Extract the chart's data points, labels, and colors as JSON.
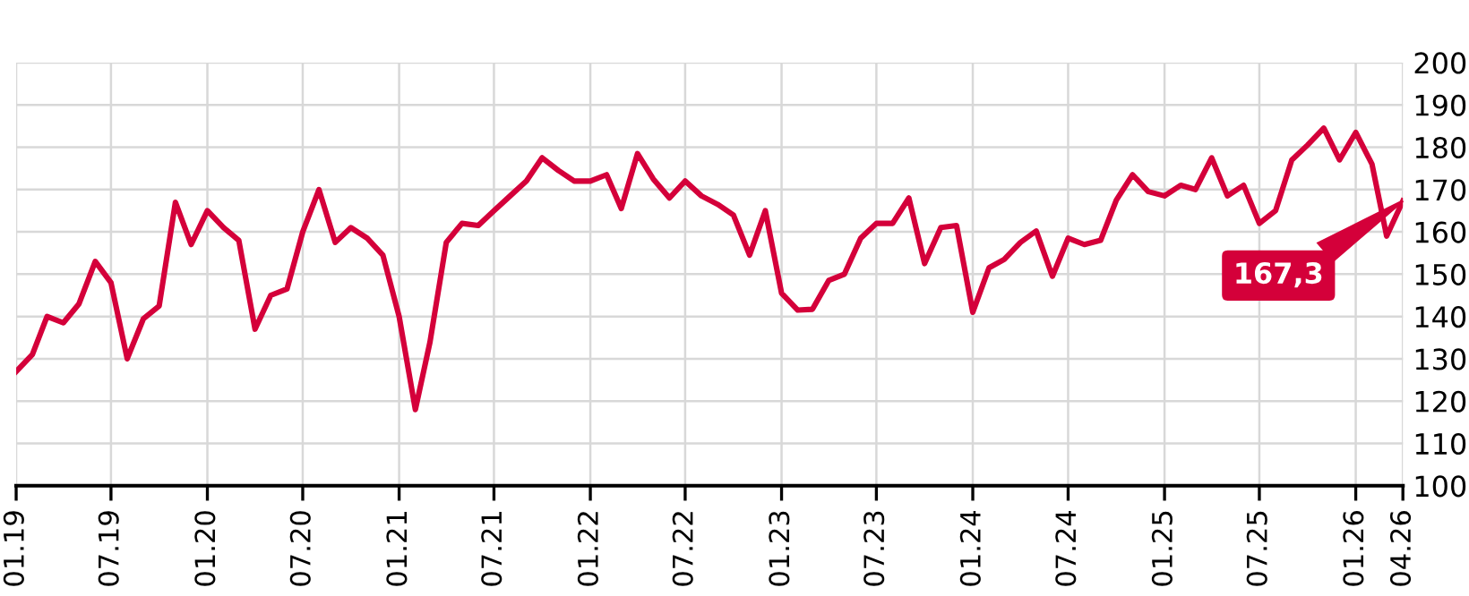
{
  "chart_data": {
    "type": "line",
    "x": [
      "2019-01",
      "2019-02",
      "2019-03",
      "2019-04",
      "2019-05",
      "2019-06",
      "2019-07",
      "2019-08",
      "2019-09",
      "2019-10",
      "2019-11",
      "2019-12",
      "2020-01",
      "2020-02",
      "2020-03",
      "2020-04",
      "2020-05",
      "2020-06",
      "2020-07",
      "2020-08",
      "2020-09",
      "2020-10",
      "2020-11",
      "2020-12",
      "2021-01",
      "2021-02",
      "2021-03",
      "2021-04",
      "2021-05",
      "2021-06",
      "2021-07",
      "2021-08",
      "2021-09",
      "2021-10",
      "2021-11",
      "2021-12",
      "2022-01",
      "2022-02",
      "2022-03",
      "2022-04",
      "2022-05",
      "2022-06",
      "2022-07",
      "2022-08",
      "2022-09",
      "2022-10",
      "2022-11",
      "2022-12",
      "2023-01",
      "2023-02",
      "2023-03",
      "2023-04",
      "2023-05",
      "2023-06",
      "2023-07",
      "2023-08",
      "2023-09",
      "2023-10",
      "2023-11",
      "2023-12",
      "2024-01",
      "2024-02",
      "2024-03",
      "2024-04",
      "2024-05",
      "2024-06",
      "2024-07",
      "2024-08",
      "2024-09",
      "2024-10",
      "2024-11",
      "2024-12",
      "2025-01",
      "2025-02",
      "2025-03",
      "2025-04",
      "2025-05",
      "2025-06",
      "2025-07",
      "2025-08",
      "2025-09",
      "2025-10",
      "2025-11",
      "2025-12",
      "2026-01",
      "2026-02",
      "2026-03",
      "2026-04"
    ],
    "series": [
      {
        "color": "#d4003a",
        "values": [
          127,
          131,
          140,
          138.5,
          143,
          153,
          148,
          130,
          139.5,
          142.5,
          167,
          157,
          165,
          161,
          158,
          137,
          145,
          146.5,
          160,
          170,
          157.5,
          161,
          158.5,
          154.5,
          140,
          118,
          134,
          157.5,
          162,
          161.5,
          165,
          168.5,
          172,
          177.5,
          174.5,
          172,
          172,
          173.5,
          165.5,
          178.5,
          172.5,
          168,
          172,
          168.5,
          166.5,
          164,
          154.5,
          165,
          145.5,
          141.5,
          141.7,
          148.5,
          150,
          158.5,
          162,
          162,
          168,
          152.5,
          161,
          161.5,
          141,
          151.5,
          153.5,
          157.5,
          160.2,
          149.5,
          158.5,
          157,
          158,
          167.5,
          173.5,
          169.5,
          168.5,
          171,
          170,
          177.5,
          168.5,
          171,
          162,
          165,
          177,
          180.5,
          184.5,
          177,
          183.5,
          176,
          159,
          167.3
        ]
      }
    ],
    "xlim": [
      "2019-01",
      "2026-04"
    ],
    "xticks": [
      {
        "value": "2019-01",
        "label": "01.19"
      },
      {
        "value": "2019-07",
        "label": "07.19"
      },
      {
        "value": "2020-01",
        "label": "01.20"
      },
      {
        "value": "2020-07",
        "label": "07.20"
      },
      {
        "value": "2021-01",
        "label": "01.21"
      },
      {
        "value": "2021-07",
        "label": "07.21"
      },
      {
        "value": "2022-01",
        "label": "01.22"
      },
      {
        "value": "2022-07",
        "label": "07.22"
      },
      {
        "value": "2023-01",
        "label": "01.23"
      },
      {
        "value": "2023-07",
        "label": "07.23"
      },
      {
        "value": "2024-01",
        "label": "01.24"
      },
      {
        "value": "2024-07",
        "label": "07.24"
      },
      {
        "value": "2025-01",
        "label": "01.25"
      },
      {
        "value": "2025-07",
        "label": "07.25"
      },
      {
        "value": "2026-01",
        "label": "01.26"
      },
      {
        "value": "2026-04",
        "label": "04.26"
      }
    ],
    "ylim": [
      100,
      200
    ],
    "yticks": [
      100,
      110,
      120,
      130,
      140,
      150,
      160,
      170,
      180,
      190,
      200
    ],
    "grid": true,
    "line_style": "solid",
    "marker": "none",
    "annotations": [
      "167,3"
    ]
  }
}
